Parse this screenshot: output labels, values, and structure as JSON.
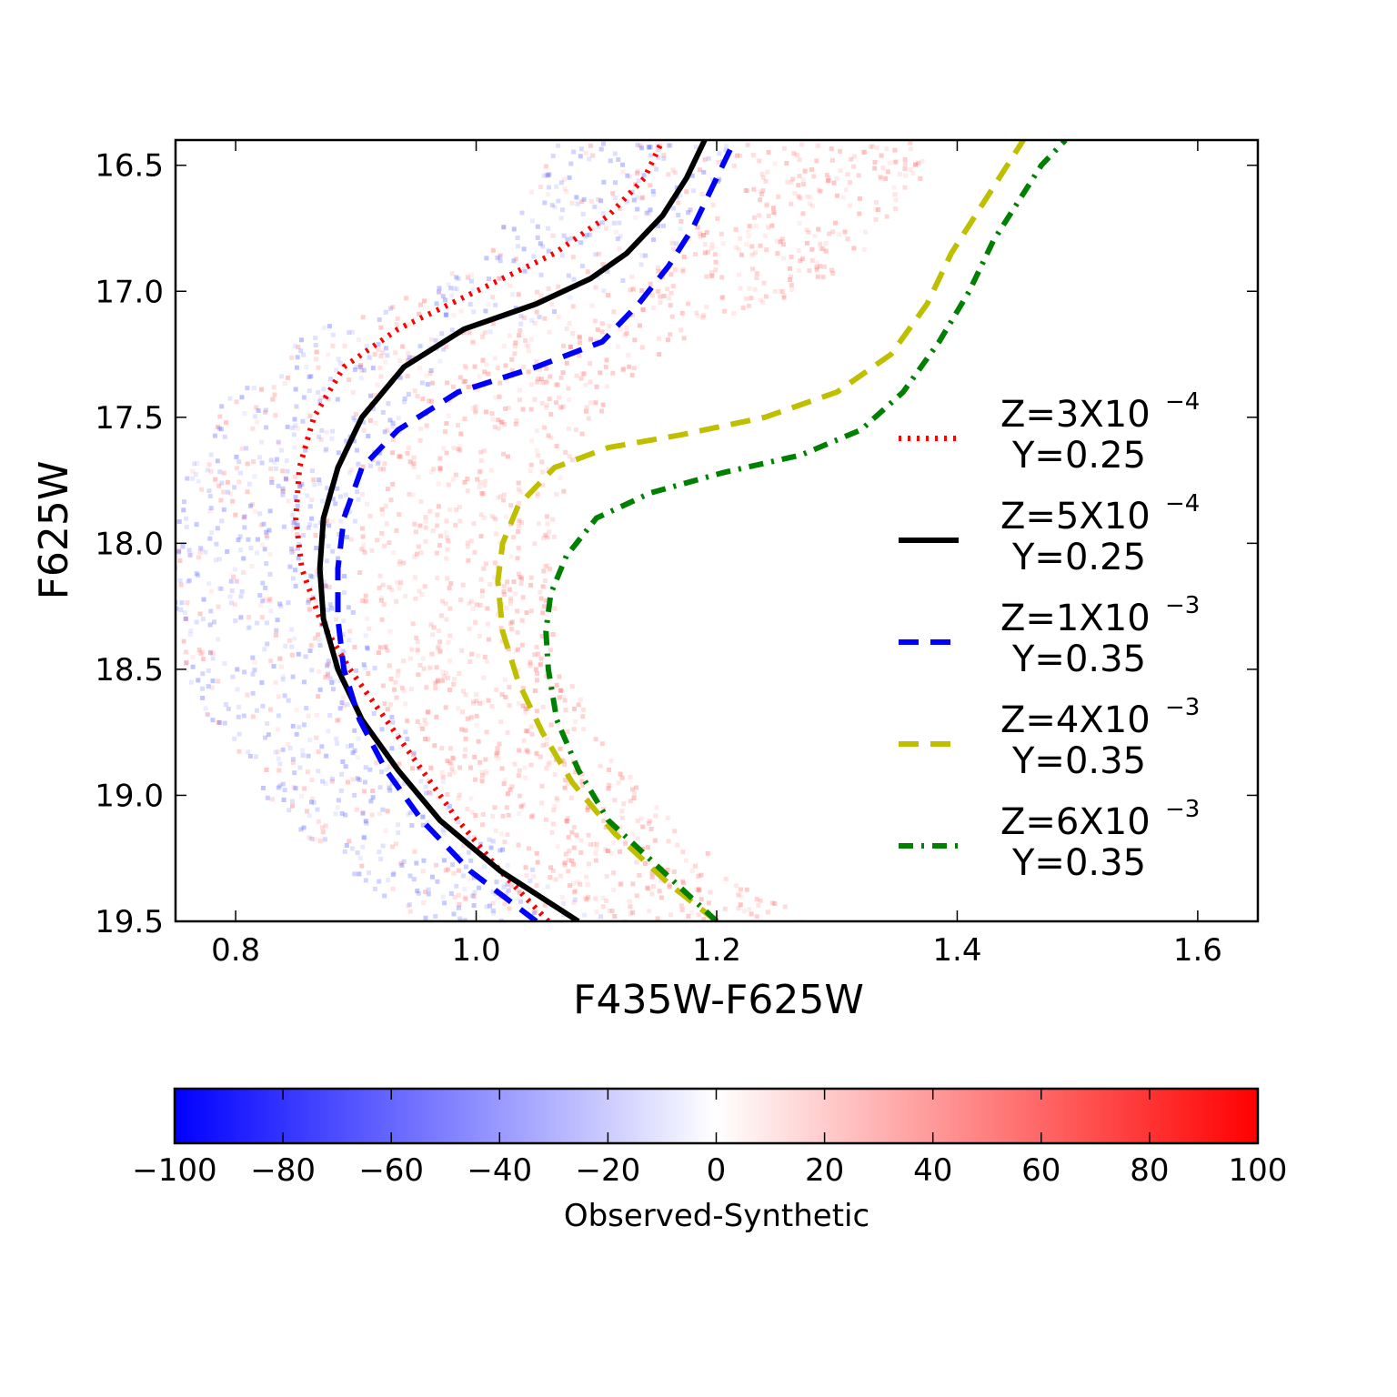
{
  "chart_data": {
    "type": "line",
    "xlabel": "F435W-F625W",
    "ylabel": "F625W",
    "xlim": [
      0.75,
      1.65
    ],
    "ylim": [
      19.5,
      16.4
    ],
    "y_inverted": true,
    "x_ticks": [
      0.8,
      1.0,
      1.2,
      1.4,
      1.6
    ],
    "x_tick_labels": [
      "0.8",
      "1.0",
      "1.2",
      "1.4",
      "1.6"
    ],
    "y_ticks": [
      16.5,
      17.0,
      17.5,
      18.0,
      18.5,
      19.0,
      19.5
    ],
    "y_tick_labels": [
      "16.5",
      "17.0",
      "17.5",
      "18.0",
      "18.5",
      "19.0",
      "19.5"
    ],
    "legend_position": "right",
    "series": [
      {
        "name": "Z=3X10^-4 Y=0.25",
        "z_label": "Z=3X10",
        "z_exp": "−4",
        "y_label": "Y=0.25",
        "color": "#ff0000",
        "style": "dotted",
        "x": [
          1.06,
          1.02,
          0.985,
          0.955,
          0.925,
          0.895,
          0.87,
          0.855,
          0.85,
          0.853,
          0.865,
          0.89,
          0.935,
          1.0,
          1.065,
          1.11,
          1.14,
          1.155
        ],
        "y": [
          19.5,
          19.3,
          19.1,
          18.9,
          18.7,
          18.5,
          18.3,
          18.1,
          17.9,
          17.7,
          17.5,
          17.3,
          17.15,
          17.0,
          16.85,
          16.7,
          16.55,
          16.4
        ]
      },
      {
        "name": "Z=5X10^-4 Y=0.25",
        "z_label": "Z=5X10",
        "z_exp": "−4",
        "y_label": "Y=0.25",
        "color": "#000000",
        "style": "solid",
        "x": [
          1.085,
          1.02,
          0.97,
          0.935,
          0.905,
          0.885,
          0.873,
          0.87,
          0.873,
          0.885,
          0.905,
          0.94,
          0.99,
          1.05,
          1.095,
          1.125,
          1.155,
          1.175,
          1.19
        ],
        "y": [
          19.5,
          19.3,
          19.1,
          18.9,
          18.7,
          18.5,
          18.3,
          18.1,
          17.9,
          17.7,
          17.5,
          17.3,
          17.15,
          17.05,
          16.95,
          16.85,
          16.7,
          16.55,
          16.4
        ]
      },
      {
        "name": "Z=1X10^-3 Y=0.35",
        "z_label": "Z=1X10",
        "z_exp": "−3",
        "y_label": "Y=0.35",
        "color": "#0000ff",
        "style": "dashed",
        "x": [
          1.05,
          0.995,
          0.955,
          0.925,
          0.903,
          0.89,
          0.885,
          0.885,
          0.89,
          0.905,
          0.935,
          0.985,
          1.05,
          1.105,
          1.135,
          1.16,
          1.18,
          1.2,
          1.215
        ],
        "y": [
          19.5,
          19.3,
          19.1,
          18.9,
          18.7,
          18.5,
          18.3,
          18.1,
          17.9,
          17.7,
          17.55,
          17.4,
          17.3,
          17.2,
          17.05,
          16.9,
          16.75,
          16.55,
          16.4
        ]
      },
      {
        "name": "Z=4X10^-3 Y=0.35",
        "z_label": "Z=4X10",
        "z_exp": "−3",
        "y_label": "Y=0.35",
        "color": "#bfbf00",
        "style": "dashed",
        "x": [
          1.2,
          1.16,
          1.115,
          1.08,
          1.055,
          1.035,
          1.022,
          1.018,
          1.022,
          1.035,
          1.065,
          1.11,
          1.17,
          1.24,
          1.3,
          1.345,
          1.375,
          1.395,
          1.415,
          1.435,
          1.455
        ],
        "y": [
          19.5,
          19.35,
          19.15,
          18.95,
          18.75,
          18.55,
          18.35,
          18.15,
          18.0,
          17.85,
          17.7,
          17.62,
          17.57,
          17.5,
          17.4,
          17.25,
          17.05,
          16.85,
          16.7,
          16.55,
          16.4
        ]
      },
      {
        "name": "Z=6X10^-3 Y=0.35",
        "z_label": "Z=6X10",
        "z_exp": "−3",
        "y_label": "Y=0.35",
        "color": "#008000",
        "style": "dashdot",
        "x": [
          1.2,
          1.155,
          1.11,
          1.085,
          1.067,
          1.06,
          1.058,
          1.062,
          1.075,
          1.1,
          1.145,
          1.205,
          1.27,
          1.32,
          1.355,
          1.385,
          1.41,
          1.43,
          1.45,
          1.47,
          1.49
        ],
        "y": [
          19.5,
          19.3,
          19.1,
          18.9,
          18.7,
          18.5,
          18.35,
          18.2,
          18.05,
          17.9,
          17.8,
          17.72,
          17.65,
          17.55,
          17.4,
          17.2,
          17.0,
          16.8,
          16.65,
          16.5,
          16.4
        ]
      }
    ],
    "colorbar": {
      "label": "Observed-Synthetic",
      "range": [
        -100,
        100
      ],
      "ticks": [
        -100,
        -80,
        -60,
        -40,
        -20,
        0,
        20,
        40,
        60,
        80,
        100
      ],
      "tick_labels": [
        "−100",
        "−80",
        "−60",
        "−40",
        "−20",
        "0",
        "20",
        "40",
        "60",
        "80",
        "100"
      ],
      "colormap": [
        "#0000ff",
        "#ffffff",
        "#ff0000"
      ]
    }
  }
}
